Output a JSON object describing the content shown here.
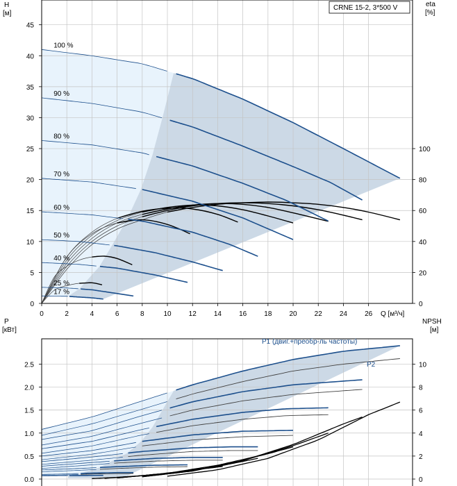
{
  "chart_data": [
    {
      "type": "line",
      "legend_box": "CRNE 15-2, 3*500 V",
      "xlabel": "Q [м³/ч]",
      "ylabel_left": [
        "H",
        "[м]"
      ],
      "ylabel_right": [
        "eta",
        "[%]"
      ],
      "xlim": [
        0,
        29.5
      ],
      "ylim_left": [
        0,
        49
      ],
      "ylim_right": [
        0,
        196
      ],
      "x_ticks": [
        0,
        2,
        4,
        6,
        8,
        10,
        12,
        14,
        16,
        18,
        20,
        22,
        24,
        26
      ],
      "y_left_ticks": [
        0,
        5,
        10,
        15,
        20,
        25,
        30,
        35,
        40,
        45
      ],
      "y_right_ticks": [
        0,
        20,
        40,
        60,
        80,
        100
      ],
      "grid": true,
      "head_curves": [
        {
          "name": "100 %",
          "x": [
            0,
            4,
            8,
            12,
            16,
            20,
            24,
            28.5
          ],
          "y": [
            41,
            40,
            38.7,
            36.3,
            33,
            29.2,
            25,
            20.2
          ]
        },
        {
          "name": "90 %",
          "x": [
            0,
            4,
            8,
            12,
            16,
            20,
            23,
            25.5
          ],
          "y": [
            33.2,
            32.3,
            30.9,
            28.5,
            25.4,
            22.1,
            19.5,
            16.7
          ]
        },
        {
          "name": "80 %",
          "x": [
            0,
            4,
            8,
            12,
            16,
            19.5,
            22.8
          ],
          "y": [
            26.3,
            25.6,
            24.3,
            22.2,
            19.4,
            16.6,
            13.3
          ]
        },
        {
          "name": "70 %",
          "x": [
            0,
            4,
            8,
            12,
            16,
            20
          ],
          "y": [
            20.2,
            19.6,
            18.4,
            16.5,
            13.8,
            10.3
          ]
        },
        {
          "name": "60 %",
          "x": [
            0,
            4,
            8,
            12,
            15,
            17.2
          ],
          "y": [
            14.8,
            14.3,
            13.3,
            11.5,
            9.5,
            7.6
          ]
        },
        {
          "name": "50 %",
          "x": [
            0,
            3,
            6,
            9,
            12,
            14.4
          ],
          "y": [
            10.3,
            10,
            9.3,
            8.2,
            6.7,
            5.3
          ]
        },
        {
          "name": "40 %",
          "x": [
            0,
            3,
            6,
            9,
            11.6
          ],
          "y": [
            6.6,
            6.3,
            5.7,
            4.6,
            3.4
          ]
        },
        {
          "name": "25 %",
          "x": [
            0,
            2,
            4,
            6,
            7.3
          ],
          "y": [
            2.6,
            2.5,
            2.2,
            1.6,
            1.2
          ]
        },
        {
          "name": "17 %",
          "x": [
            0,
            2,
            4,
            4.9
          ],
          "y": [
            1.2,
            1.15,
            0.9,
            0.7
          ]
        }
      ],
      "efficiency_curves": [
        {
          "x": [
            0,
            2,
            4,
            6,
            8,
            10,
            12,
            14,
            16,
            18,
            20,
            22,
            24,
            26,
            28.5
          ],
          "y": [
            0,
            22,
            38,
            48,
            54,
            59,
            62,
            64,
            65,
            65.5,
            65,
            64,
            62,
            59,
            54
          ]
        },
        {
          "x": [
            0,
            2,
            4,
            6,
            8,
            10,
            12,
            14,
            16,
            18,
            20,
            22,
            24,
            25.5
          ],
          "y": [
            0,
            24,
            40,
            50,
            56,
            60,
            63,
            64.5,
            65,
            64.5,
            63,
            60.5,
            57,
            54
          ]
        },
        {
          "x": [
            0,
            2,
            4,
            6,
            8,
            10,
            12,
            14,
            16,
            18,
            20,
            22.8
          ],
          "y": [
            0,
            26,
            42,
            52,
            57.5,
            61,
            63.5,
            64.5,
            64,
            62,
            58.5,
            53
          ]
        },
        {
          "x": [
            0,
            2,
            4,
            6,
            8,
            10,
            12,
            14,
            16,
            18,
            20
          ],
          "y": [
            0,
            28,
            44,
            53.5,
            59,
            62,
            63.5,
            63,
            60.5,
            56.5,
            52
          ]
        },
        {
          "x": [
            0,
            2,
            4,
            6,
            8,
            10,
            12,
            14,
            15.6
          ],
          "y": [
            0,
            30,
            46,
            55,
            59.5,
            61.5,
            61,
            57.5,
            52.5
          ]
        },
        {
          "x": [
            0,
            2,
            4,
            6,
            8,
            10,
            11.8
          ],
          "y": [
            0,
            30,
            45,
            52,
            54,
            51,
            45
          ]
        },
        {
          "x": [
            0,
            1,
            2,
            3,
            4,
            5,
            6,
            7.2
          ],
          "y": [
            0,
            17,
            24,
            28,
            30,
            30.5,
            29,
            25
          ]
        },
        {
          "x": [
            0,
            1,
            2,
            3,
            4,
            4.8
          ],
          "y": [
            0,
            8.5,
            11.5,
            13,
            13.3,
            12
          ]
        }
      ]
    },
    {
      "type": "line",
      "ylabel_left": [
        "P",
        "[кВт]"
      ],
      "ylabel_right": [
        "NPSH",
        "[м]"
      ],
      "xlim": [
        0,
        29.5
      ],
      "ylim_left": [
        0,
        3.05
      ],
      "ylim_right": [
        0,
        12.2
      ],
      "y_left_ticks": [
        0.0,
        0.5,
        1.0,
        1.5,
        2.0,
        2.5
      ],
      "y_left_tick_labels": [
        "0.0",
        "0.5",
        "1.0",
        "1.5",
        "2.0",
        "2.5"
      ],
      "y_right_ticks": [
        0,
        2,
        4,
        6,
        8,
        10
      ],
      "grid": true,
      "series_labels": [
        "P1 (двиг.+преобр-ль частоты)",
        "P2"
      ],
      "p1_curves": [
        {
          "x": [
            0,
            4,
            8,
            12,
            16,
            20,
            24,
            28.5
          ],
          "y": [
            1.08,
            1.35,
            1.7,
            2.05,
            2.35,
            2.6,
            2.78,
            2.9
          ]
        },
        {
          "x": [
            0,
            4,
            8,
            12,
            16,
            20,
            25.5
          ],
          "y": [
            0.86,
            1.05,
            1.38,
            1.68,
            1.9,
            2.05,
            2.16
          ]
        },
        {
          "x": [
            0,
            4,
            8,
            12,
            16,
            19.5,
            22.8
          ],
          "y": [
            0.66,
            0.82,
            1.08,
            1.3,
            1.45,
            1.53,
            1.55
          ]
        },
        {
          "x": [
            0,
            4,
            8,
            12,
            16,
            20
          ],
          "y": [
            0.5,
            0.62,
            0.82,
            0.96,
            1.04,
            1.06
          ]
        },
        {
          "x": [
            0,
            4,
            8,
            12,
            15,
            17.2
          ],
          "y": [
            0.38,
            0.48,
            0.6,
            0.68,
            0.7,
            0.7
          ]
        },
        {
          "x": [
            0,
            3,
            6,
            9,
            12,
            14.4
          ],
          "y": [
            0.28,
            0.34,
            0.4,
            0.45,
            0.47,
            0.47
          ]
        },
        {
          "x": [
            0,
            3,
            6,
            9,
            11.6
          ],
          "y": [
            0.2,
            0.23,
            0.27,
            0.3,
            0.31
          ]
        },
        {
          "x": [
            0,
            2,
            4,
            6,
            7.3
          ],
          "y": [
            0.1,
            0.11,
            0.13,
            0.14,
            0.14
          ]
        },
        {
          "x": [
            0,
            2,
            4,
            4.9
          ],
          "y": [
            0.07,
            0.075,
            0.08,
            0.08
          ]
        }
      ],
      "p2_curves": [
        {
          "x": [
            0,
            4,
            8,
            12,
            16,
            20,
            24,
            28.5
          ],
          "y": [
            0.95,
            1.2,
            1.52,
            1.85,
            2.12,
            2.35,
            2.5,
            2.62
          ]
        },
        {
          "x": [
            0,
            4,
            8,
            12,
            16,
            20,
            25.5
          ],
          "y": [
            0.74,
            0.93,
            1.22,
            1.5,
            1.7,
            1.84,
            1.95
          ]
        },
        {
          "x": [
            0,
            4,
            8,
            12,
            16,
            19.5,
            22.8
          ],
          "y": [
            0.56,
            0.72,
            0.96,
            1.16,
            1.3,
            1.38,
            1.4
          ]
        },
        {
          "x": [
            0,
            4,
            8,
            12,
            16,
            20
          ],
          "y": [
            0.42,
            0.54,
            0.72,
            0.85,
            0.92,
            0.95
          ]
        },
        {
          "x": [
            0,
            4,
            8,
            12,
            15,
            17.2
          ],
          "y": [
            0.32,
            0.41,
            0.52,
            0.6,
            0.62,
            0.62
          ]
        },
        {
          "x": [
            0,
            3,
            6,
            9,
            12,
            14.4
          ],
          "y": [
            0.23,
            0.29,
            0.35,
            0.39,
            0.41,
            0.41
          ]
        },
        {
          "x": [
            0,
            3,
            6,
            9,
            11.6
          ],
          "y": [
            0.16,
            0.19,
            0.23,
            0.26,
            0.27
          ]
        },
        {
          "x": [
            0,
            2,
            4,
            6,
            7.3
          ],
          "y": [
            0.08,
            0.09,
            0.11,
            0.12,
            0.12
          ]
        }
      ],
      "npsh_curves": [
        {
          "x": [
            10,
            14,
            18,
            22,
            26,
            28.5
          ],
          "y": [
            0.25,
            0.8,
            1.8,
            3.4,
            5.6,
            6.7
          ]
        },
        {
          "x": [
            8,
            12,
            16,
            20,
            24,
            25.5
          ],
          "y": [
            0.2,
            0.7,
            1.6,
            3.0,
            4.8,
            5.4
          ]
        },
        {
          "x": [
            8,
            12,
            16,
            20,
            22.8
          ],
          "y": [
            0.2,
            0.7,
            1.6,
            2.9,
            4.0
          ]
        },
        {
          "x": [
            6,
            10,
            14,
            18,
            20
          ],
          "y": [
            0.1,
            0.5,
            1.2,
            2.2,
            2.8
          ]
        },
        {
          "x": [
            6,
            10,
            14,
            17.2
          ],
          "y": [
            0.1,
            0.5,
            1.1,
            1.8
          ]
        },
        {
          "x": [
            6,
            10,
            14.4
          ],
          "y": [
            0.1,
            0.5,
            1.1
          ]
        },
        {
          "x": [
            5,
            8,
            11.6
          ],
          "y": [
            0.06,
            0.3,
            0.7
          ]
        },
        {
          "x": [
            4,
            6,
            7.3
          ],
          "y": [
            0.04,
            0.15,
            0.25
          ]
        }
      ]
    }
  ],
  "colors": {
    "blue_curve": "#1c4f8c",
    "black_curve": "#000000",
    "grey_curve": "#404040",
    "region_fill": "#ccd9e6",
    "region_light": "#e8f3fc",
    "grid": "#c4c4c4"
  }
}
